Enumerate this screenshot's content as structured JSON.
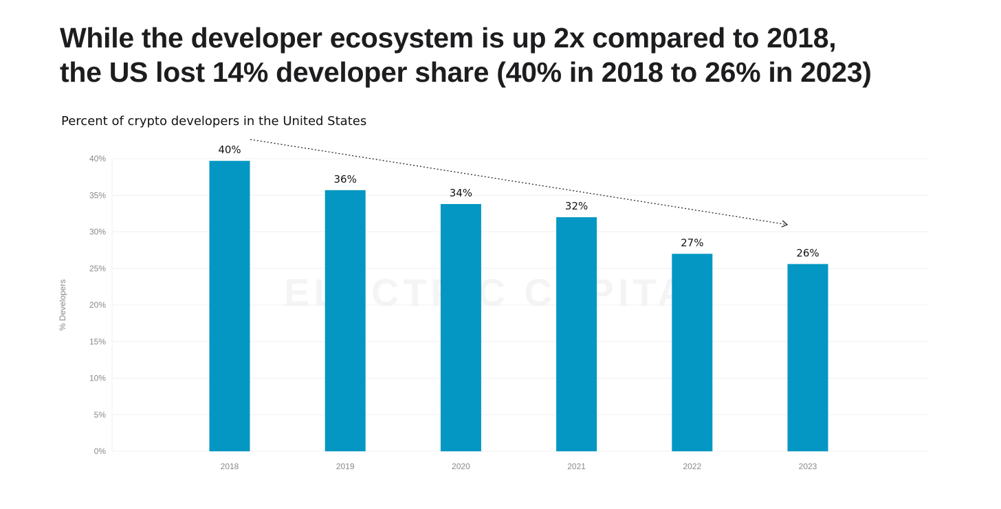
{
  "headline": {
    "line1": "While the developer ecosystem is up 2x compared to 2018,",
    "line2": "the US lost 14% developer share (40% in 2018 to 26% in 2023)"
  },
  "chart_data": {
    "type": "bar",
    "title": "Percent of crypto developers in the United States",
    "categories": [
      "2018",
      "2019",
      "2020",
      "2021",
      "2022",
      "2023"
    ],
    "values": [
      39.7,
      35.7,
      33.8,
      32.0,
      27.0,
      25.6
    ],
    "data_labels": [
      "40%",
      "36%",
      "34%",
      "32%",
      "27%",
      "26%"
    ],
    "ylabel": "% Developers",
    "xlabel": "",
    "ylim": [
      0,
      40
    ],
    "yticks": [
      0,
      5,
      10,
      15,
      20,
      25,
      30,
      35,
      40
    ],
    "ytick_labels": [
      "0%",
      "5%",
      "10%",
      "15%",
      "20%",
      "25%",
      "30%",
      "35%",
      "40%"
    ],
    "bar_color": "#0497c3",
    "grid": true,
    "trend_arrow": {
      "from_category": "2018",
      "to_category": "2023",
      "style": "dotted"
    },
    "watermark": "ELECTRIC CAPITAL"
  }
}
